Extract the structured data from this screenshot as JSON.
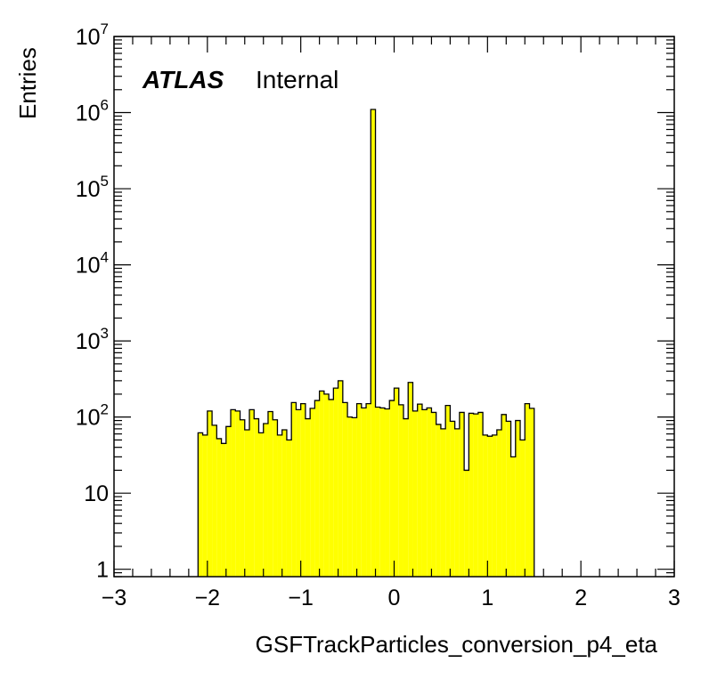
{
  "chart_data": {
    "type": "bar",
    "style": "histogram-step",
    "xlabel": "GSFTrackParticles_conversion_p4_eta",
    "ylabel": "Entries",
    "label_bold": "ATLAS",
    "label_plain": "Internal",
    "xlim": [
      -3,
      3
    ],
    "ylim": [
      0.8,
      10000000
    ],
    "yscale": "log",
    "grid": false,
    "fill_color": "#ffff00",
    "line_color": "#000000",
    "x_ticks": [
      {
        "v": -3,
        "label": "−3"
      },
      {
        "v": -2,
        "label": "−2"
      },
      {
        "v": -1,
        "label": "−1"
      },
      {
        "v": 0,
        "label": "0"
      },
      {
        "v": 1,
        "label": "1"
      },
      {
        "v": 2,
        "label": "2"
      },
      {
        "v": 3,
        "label": "3"
      }
    ],
    "y_ticks": [
      {
        "v": 1,
        "base": "1",
        "exp": ""
      },
      {
        "v": 10,
        "base": "10",
        "exp": ""
      },
      {
        "v": 100,
        "base": "10",
        "exp": "2"
      },
      {
        "v": 1000,
        "base": "10",
        "exp": "3"
      },
      {
        "v": 10000,
        "base": "10",
        "exp": "4"
      },
      {
        "v": 100000,
        "base": "10",
        "exp": "5"
      },
      {
        "v": 1000000,
        "base": "10",
        "exp": "6"
      },
      {
        "v": 10000000,
        "base": "10",
        "exp": "7"
      }
    ],
    "bin_edges_start": -2.1,
    "bin_width": 0.05,
    "values": [
      62,
      58,
      120,
      78,
      52,
      45,
      75,
      125,
      120,
      92,
      68,
      125,
      95,
      62,
      82,
      118,
      92,
      58,
      68,
      50,
      155,
      125,
      150,
      95,
      130,
      165,
      220,
      200,
      170,
      240,
      300,
      155,
      100,
      98,
      150,
      132,
      150,
      1100000,
      135,
      132,
      128,
      165,
      240,
      145,
      95,
      285,
      120,
      148,
      125,
      132,
      115,
      80,
      70,
      142,
      88,
      70,
      115,
      20,
      112,
      110,
      115,
      58,
      56,
      58,
      68,
      108,
      88,
      30,
      90,
      50,
      150,
      130
    ]
  }
}
